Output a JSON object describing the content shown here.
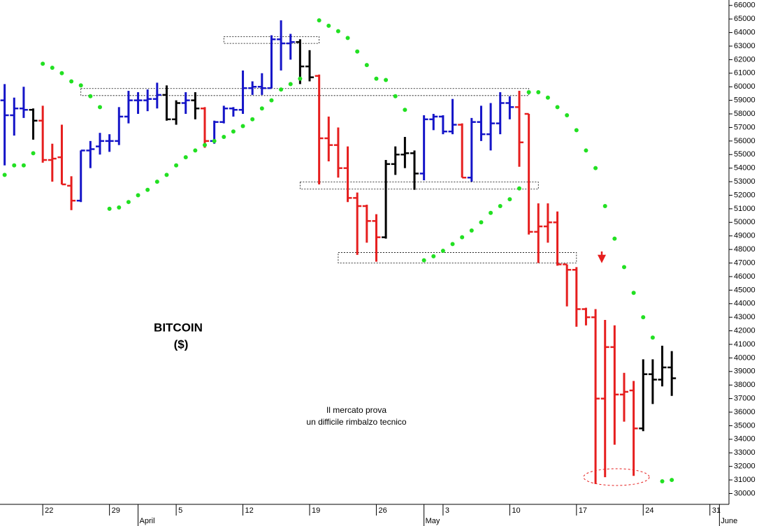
{
  "chart_data": {
    "type": "ohlc",
    "title": "BITCOIN",
    "subtitle": "($)",
    "annotations": [
      "Il mercato prova",
      "un difficile rimbalzo tecnico"
    ],
    "x": [
      "03-18",
      "03-19",
      "03-20",
      "03-21",
      "03-22",
      "03-23",
      "03-24",
      "03-25",
      "03-26",
      "03-27",
      "03-28",
      "03-29",
      "03-30",
      "03-31",
      "04-01",
      "04-02",
      "04-03",
      "04-04",
      "04-05",
      "04-06",
      "04-07",
      "04-08",
      "04-09",
      "04-10",
      "04-11",
      "04-12",
      "04-13",
      "04-14",
      "04-15",
      "04-16",
      "04-17",
      "04-18",
      "04-19",
      "04-20",
      "04-21",
      "04-22",
      "04-23",
      "04-24",
      "04-25",
      "04-26",
      "04-27",
      "04-28",
      "04-29",
      "04-30",
      "05-01",
      "05-02",
      "05-03",
      "05-04",
      "05-05",
      "05-06",
      "05-07",
      "05-08",
      "05-09",
      "05-10",
      "05-11",
      "05-12",
      "05-13",
      "05-14",
      "05-15",
      "05-16",
      "05-17",
      "05-18",
      "05-19",
      "05-20",
      "05-21",
      "05-22",
      "05-23",
      "05-24",
      "05-25",
      "05-26",
      "05-27"
    ],
    "open": [
      59000,
      57900,
      58400,
      58300,
      57500,
      54600,
      54800,
      52700,
      51600,
      55300,
      55600,
      56000,
      56000,
      57800,
      59000,
      59000,
      59100,
      59400,
      57600,
      58800,
      59000,
      58400,
      56000,
      57400,
      58400,
      58300,
      59900,
      60000,
      59900,
      63500,
      63200,
      63300,
      61500,
      60800,
      56200,
      55700,
      54000,
      51800,
      51200,
      50100,
      48900,
      54300,
      55000,
      55100,
      53600,
      57600,
      57800,
      56700,
      57200,
      53300,
      57400,
      56500,
      57300,
      58800,
      58500,
      58000,
      49300,
      49700,
      50000,
      46900,
      46500,
      43600,
      43000,
      37000,
      40800,
      37300,
      37600,
      34800,
      38800,
      38400,
      39300
    ],
    "high": [
      60200,
      59200,
      60000,
      58400,
      58600,
      55800,
      57200,
      53400,
      55300,
      56000,
      56600,
      56500,
      58500,
      59700,
      59600,
      59800,
      60300,
      60100,
      59000,
      59600,
      59600,
      58500,
      57500,
      58600,
      58500,
      61200,
      60400,
      61000,
      63800,
      64900,
      63900,
      63500,
      62700,
      60900,
      57800,
      57000,
      55600,
      52200,
      51300,
      50600,
      54600,
      55600,
      56300,
      55300,
      57900,
      58000,
      57900,
      59100,
      57300,
      57700,
      58600,
      58800,
      59600,
      59300,
      59700,
      58000,
      51400,
      51400,
      50800,
      46900,
      46700,
      43700,
      43600,
      42800,
      42400,
      38900,
      38300,
      39900,
      39900,
      40900,
      40500
    ],
    "low": [
      54200,
      56400,
      57700,
      56100,
      54400,
      53000,
      52800,
      50900,
      51500,
      54000,
      55000,
      55200,
      55700,
      57300,
      58000,
      58200,
      58400,
      57500,
      57200,
      58000,
      57600,
      55500,
      55800,
      57300,
      57800,
      58000,
      59400,
      59400,
      59900,
      61200,
      62000,
      60200,
      60400,
      52800,
      54500,
      53300,
      51500,
      47600,
      48500,
      47100,
      48800,
      53500,
      54000,
      52400,
      53100,
      56800,
      56500,
      56500,
      53300,
      53000,
      56000,
      55300,
      56500,
      57600,
      54100,
      49100,
      47000,
      48500,
      46800,
      43800,
      42300,
      42400,
      30700,
      31200,
      33600,
      35300,
      31300,
      34600,
      36600,
      37900,
      37200
    ],
    "close": [
      57900,
      58400,
      58300,
      57500,
      54600,
      54700,
      52800,
      51600,
      55300,
      55400,
      56000,
      56000,
      57800,
      59000,
      59000,
      59100,
      59400,
      57600,
      58800,
      59000,
      58400,
      56000,
      57400,
      58400,
      58300,
      59900,
      60000,
      59900,
      63500,
      63200,
      63300,
      61500,
      60700,
      56200,
      55700,
      54000,
      51800,
      51200,
      50100,
      48900,
      54300,
      55000,
      55100,
      53600,
      57600,
      57800,
      56700,
      57200,
      53300,
      57400,
      56500,
      57300,
      58800,
      58500,
      55900,
      49300,
      49700,
      50000,
      46900,
      46500,
      43600,
      43000,
      37000,
      40800,
      37300,
      37500,
      34800,
      38800,
      38400,
      39300,
      38500
    ],
    "colors": [
      "#1414c8",
      "#1414c8",
      "#1414c8",
      "#000000",
      "#e61e1e",
      "#e61e1e",
      "#e61e1e",
      "#e61e1e",
      "#1414c8",
      "#1414c8",
      "#1414c8",
      "#1414c8",
      "#1414c8",
      "#1414c8",
      "#1414c8",
      "#1414c8",
      "#1414c8",
      "#000000",
      "#000000",
      "#1414c8",
      "#000000",
      "#e61e1e",
      "#1414c8",
      "#1414c8",
      "#1414c8",
      "#1414c8",
      "#1414c8",
      "#1414c8",
      "#1414c8",
      "#1414c8",
      "#1414c8",
      "#000000",
      "#000000",
      "#e61e1e",
      "#e61e1e",
      "#e61e1e",
      "#e61e1e",
      "#e61e1e",
      "#e61e1e",
      "#e61e1e",
      "#000000",
      "#000000",
      "#000000",
      "#000000",
      "#1414c8",
      "#1414c8",
      "#1414c8",
      "#1414c8",
      "#e61e1e",
      "#1414c8",
      "#1414c8",
      "#1414c8",
      "#1414c8",
      "#1414c8",
      "#e61e1e",
      "#e61e1e",
      "#e61e1e",
      "#e61e1e",
      "#e61e1e",
      "#e61e1e",
      "#e61e1e",
      "#e61e1e",
      "#e61e1e",
      "#e61e1e",
      "#e61e1e",
      "#e61e1e",
      "#e61e1e",
      "#000000",
      "#000000",
      "#000000",
      "#000000"
    ],
    "sar": [
      53500,
      54200,
      54200,
      55100,
      61700,
      61400,
      61000,
      60400,
      60100,
      59300,
      58500,
      51000,
      51100,
      51500,
      52000,
      52400,
      53000,
      53500,
      54200,
      54800,
      55300,
      55700,
      56000,
      56300,
      56700,
      57100,
      57600,
      58400,
      59000,
      59800,
      60200,
      60600,
      null,
      64900,
      64500,
      64100,
      63600,
      62600,
      61600,
      60600,
      60500,
      59300,
      58300,
      null,
      47200,
      47500,
      47900,
      48400,
      48900,
      49400,
      50000,
      50700,
      51200,
      51700,
      52500,
      59600,
      59600,
      59200,
      58500,
      57900,
      56800,
      55300,
      54000,
      51200,
      48800,
      46700,
      44800,
      43000,
      41500,
      30900,
      31000
    ],
    "sar_color": "#22e022",
    "zones": [
      {
        "x": [
          "04-10",
          "04-20"
        ],
        "y": [
          63200,
          63700
        ]
      },
      {
        "x": [
          "03-26",
          "05-12"
        ],
        "y": [
          59350,
          59870
        ]
      },
      {
        "x": [
          "04-18",
          "05-13"
        ],
        "y": [
          52450,
          52970
        ]
      },
      {
        "x": [
          "04-22",
          "05-17"
        ],
        "y": [
          47000,
          47770
        ]
      }
    ],
    "xlim": [
      "03-17",
      "06-02"
    ],
    "xticks": [
      {
        "value": "03-22",
        "label": "22"
      },
      {
        "value": "03-29",
        "label": "29"
      },
      {
        "value": "04-05",
        "label": "5"
      },
      {
        "value": "04-12",
        "label": "12"
      },
      {
        "value": "04-19",
        "label": "19"
      },
      {
        "value": "04-26",
        "label": "26"
      },
      {
        "value": "05-03",
        "label": "3"
      },
      {
        "value": "05-10",
        "label": "10"
      },
      {
        "value": "05-17",
        "label": "17"
      },
      {
        "value": "05-24",
        "label": "24"
      },
      {
        "value": "05-31",
        "label": "31"
      }
    ],
    "month_ticks": [
      {
        "value": "04-01",
        "label": "April"
      },
      {
        "value": "05-01",
        "label": "May"
      },
      {
        "value": "06-01",
        "label": "June"
      }
    ],
    "ylim": [
      29200,
      66400
    ],
    "yticks": [
      30000,
      31000,
      32000,
      33000,
      34000,
      35000,
      36000,
      37000,
      38000,
      39000,
      40000,
      41000,
      42000,
      43000,
      44000,
      45000,
      46000,
      47000,
      48000,
      49000,
      50000,
      51000,
      52000,
      53000,
      54000,
      55000,
      56000,
      57000,
      58000,
      59000,
      60000,
      61000,
      62000,
      63000,
      64000,
      65000,
      66000
    ]
  }
}
